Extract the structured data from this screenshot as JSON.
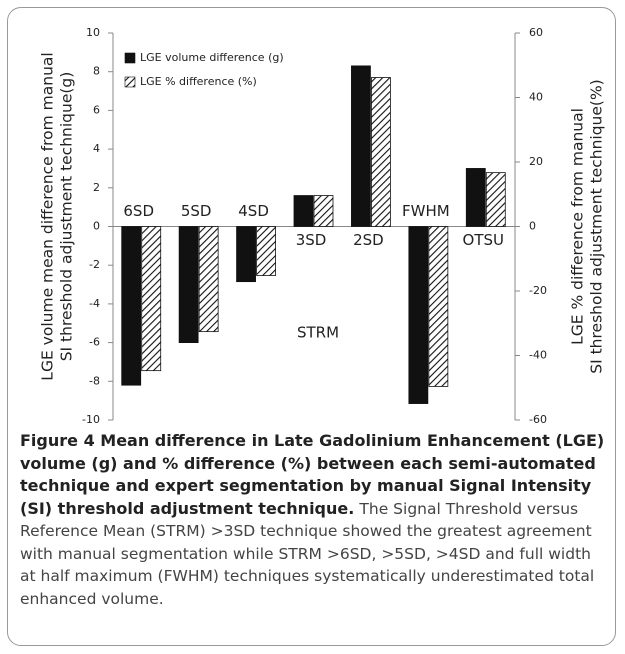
{
  "chart_data": {
    "type": "bar",
    "categories": [
      "6SD",
      "5SD",
      "4SD",
      "3SD",
      "2SD",
      "FWHM",
      "OTSU"
    ],
    "series": [
      {
        "name": "LGE volume difference (g)",
        "color": "#111111",
        "values": [
          -8.2,
          -6.0,
          -2.85,
          1.6,
          8.3,
          -9.15,
          3.0
        ]
      },
      {
        "name": "LGE % difference (%)",
        "color": "#111111",
        "pattern": "hatch",
        "axis": "y2",
        "values": [
          -44.7,
          -32.6,
          -15.2,
          9.6,
          46.2,
          -49.6,
          16.7
        ]
      }
    ],
    "ylabel": [
      "LGE volume mean difference from manual",
      "SI threshold adjustment technique(g)"
    ],
    "y2label": [
      "LGE % difference from manual",
      "SI threshold adjustment technique(%)"
    ],
    "annotation": "STRM",
    "ylim": [
      -10,
      10
    ],
    "yticks": [
      -10,
      -8,
      -6,
      -4,
      -2,
      0,
      2,
      4,
      6,
      8,
      10
    ],
    "y2lim": [
      -60,
      60
    ],
    "y2ticks": [
      -60,
      -40,
      -20,
      0,
      20,
      40,
      60
    ],
    "legend": "top-left",
    "grid": false,
    "caption": {
      "title": "Figure 4 Mean difference in Late Gadolinium Enhancement (LGE) volume (g) and % difference (%) between each semi-automated technique and expert segmentation by manual Signal Intensity (SI) threshold adjustment technique.",
      "text": "The Signal Threshold versus Reference Mean (STRM) >3SD technique showed the greatest agreement with manual segmentation while STRM >6SD, >5SD, >4SD and full width at half maximum (FWHM) techniques systematically underestimated total enhanced volume."
    }
  }
}
